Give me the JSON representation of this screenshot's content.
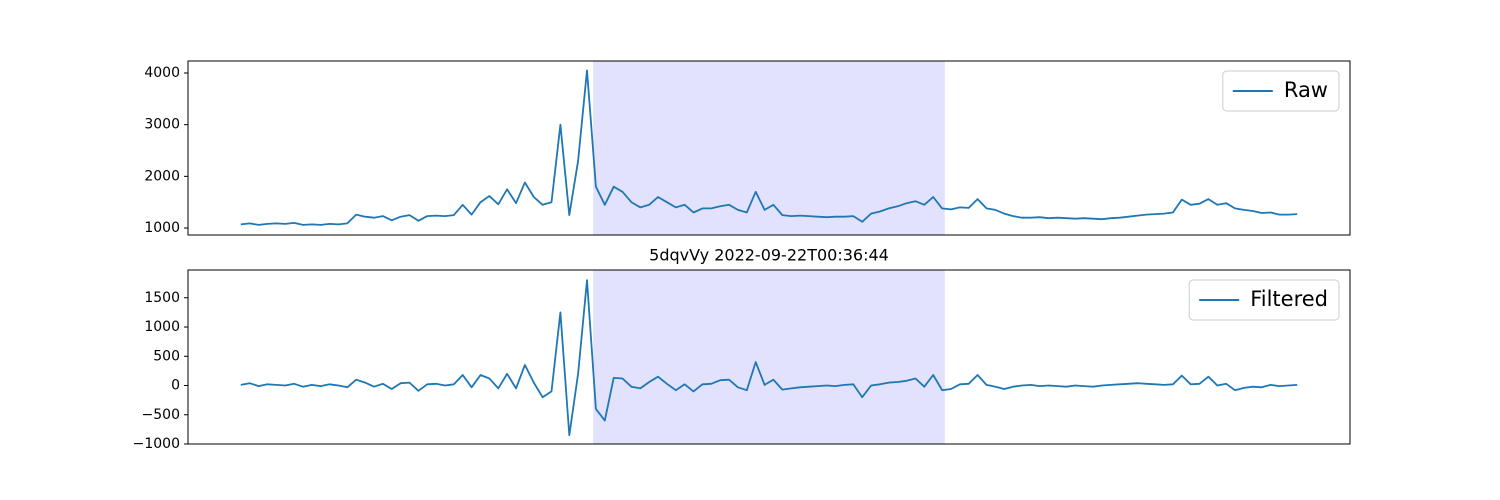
{
  "chart_data": [
    {
      "type": "line",
      "series": [
        {
          "name": "Raw",
          "color": "#1f77b4",
          "values": [
            1070,
            1090,
            1060,
            1080,
            1090,
            1080,
            1100,
            1060,
            1070,
            1060,
            1080,
            1070,
            1090,
            1260,
            1220,
            1200,
            1230,
            1150,
            1220,
            1250,
            1140,
            1230,
            1240,
            1230,
            1250,
            1450,
            1260,
            1500,
            1620,
            1460,
            1750,
            1480,
            1880,
            1600,
            1450,
            1500,
            3000,
            1250,
            2300,
            4050,
            1800,
            1450,
            1800,
            1700,
            1500,
            1400,
            1450,
            1600,
            1500,
            1400,
            1450,
            1300,
            1380,
            1380,
            1420,
            1450,
            1350,
            1300,
            1700,
            1350,
            1450,
            1250,
            1230,
            1240,
            1230,
            1220,
            1210,
            1220,
            1220,
            1230,
            1120,
            1280,
            1320,
            1380,
            1420,
            1480,
            1520,
            1450,
            1600,
            1380,
            1360,
            1400,
            1390,
            1560,
            1380,
            1350,
            1280,
            1230,
            1200,
            1200,
            1210,
            1190,
            1200,
            1190,
            1180,
            1190,
            1180,
            1170,
            1190,
            1200,
            1220,
            1240,
            1260,
            1270,
            1280,
            1300,
            1550,
            1450,
            1470,
            1560,
            1450,
            1480,
            1380,
            1350,
            1330,
            1290,
            1300,
            1260,
            1260,
            1270
          ]
        }
      ],
      "ylim": [
        865,
        4232
      ],
      "yticks": [
        1000,
        2000,
        3000,
        4000
      ],
      "highlight": [
        39.7,
        79.3
      ],
      "highlight_color": "#e2e2fc",
      "legend": "upper right"
    },
    {
      "type": "line",
      "title": "5dqvVy 2022-09-22T00:36:44",
      "series": [
        {
          "name": "Filtered",
          "color": "#1f77b4",
          "values": [
            10,
            40,
            -10,
            20,
            10,
            0,
            30,
            -20,
            10,
            -10,
            20,
            0,
            -30,
            100,
            50,
            -20,
            30,
            -60,
            40,
            50,
            -90,
            20,
            30,
            0,
            20,
            180,
            -30,
            180,
            120,
            -50,
            200,
            -50,
            350,
            50,
            -200,
            -100,
            1250,
            -850,
            200,
            1800,
            -400,
            -600,
            130,
            120,
            -20,
            -50,
            60,
            150,
            30,
            -80,
            20,
            -100,
            20,
            30,
            90,
            100,
            -30,
            -80,
            400,
            10,
            100,
            -70,
            -50,
            -30,
            -20,
            -10,
            0,
            -10,
            10,
            20,
            -200,
            0,
            20,
            50,
            60,
            80,
            120,
            -20,
            180,
            -80,
            -60,
            20,
            30,
            180,
            10,
            -20,
            -60,
            -20,
            0,
            10,
            -10,
            0,
            -10,
            -20,
            0,
            -10,
            -20,
            0,
            10,
            20,
            30,
            40,
            30,
            20,
            10,
            20,
            170,
            20,
            30,
            150,
            0,
            30,
            -80,
            -40,
            -20,
            -30,
            10,
            -10,
            0,
            10
          ]
        }
      ],
      "ylim": [
        -1000,
        1975
      ],
      "yticks": [
        {
          "value": -1000,
          "label": "−1000"
        },
        {
          "value": -500,
          "label": "−500"
        },
        0,
        500,
        1000,
        1500
      ],
      "highlight": [
        39.7,
        79.3
      ],
      "highlight_color": "#e2e2fc",
      "legend": "upper right"
    }
  ]
}
